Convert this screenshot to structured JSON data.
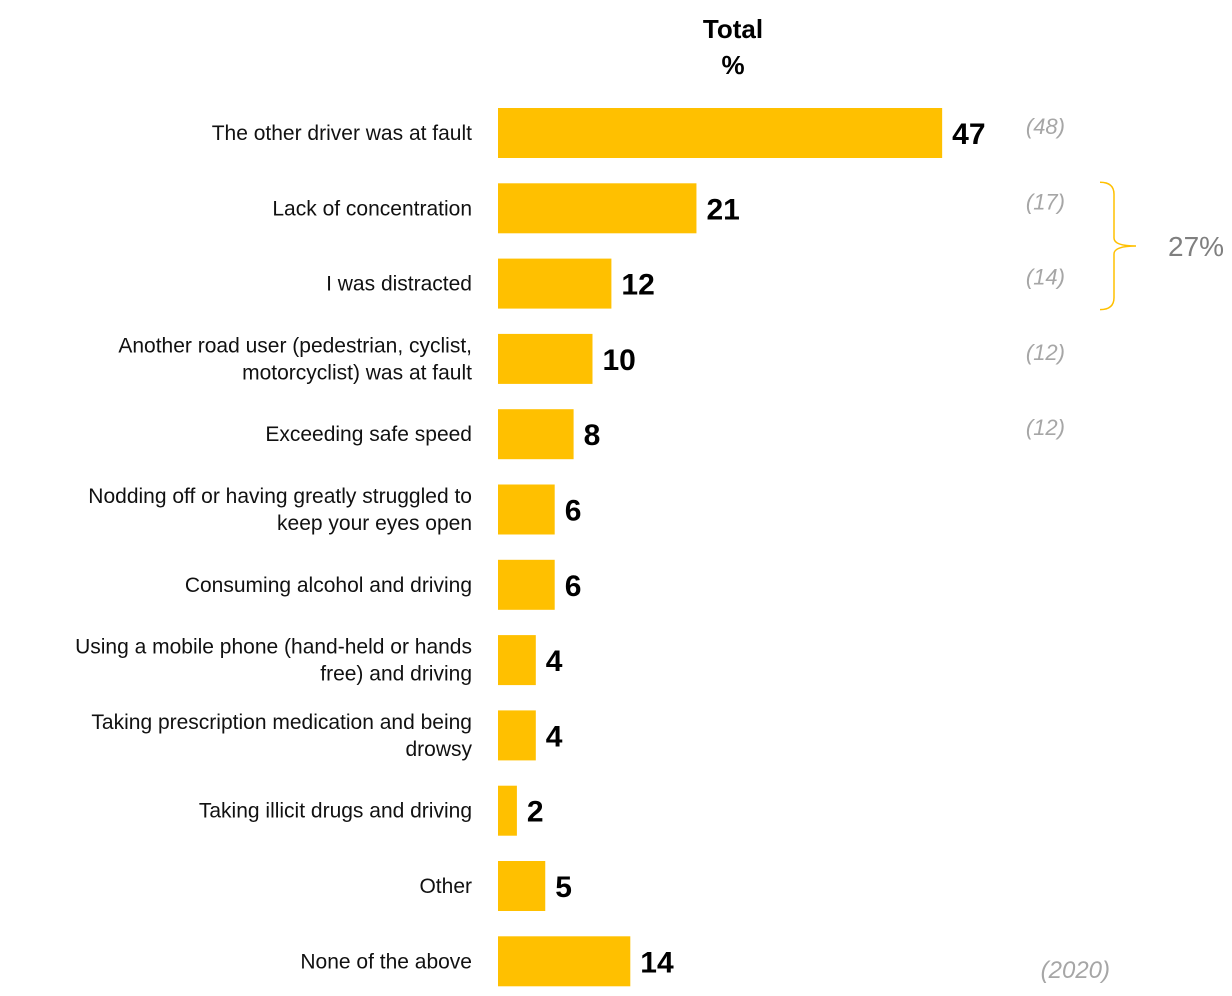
{
  "chart_data": {
    "type": "bar",
    "orientation": "horizontal",
    "column_header": [
      "Total",
      "%"
    ],
    "bar_color": "#FFC000",
    "categories": [
      [
        "The other driver was at fault"
      ],
      [
        "Lack of concentration"
      ],
      [
        "I was distracted"
      ],
      [
        "Another road user (pedestrian, cyclist,",
        "motorcyclist) was at fault"
      ],
      [
        "Exceeding safe speed"
      ],
      [
        "Nodding off or having greatly struggled to",
        "keep your eyes open"
      ],
      [
        "Consuming alcohol and driving"
      ],
      [
        "Using a mobile phone (hand-held or hands",
        "free) and driving"
      ],
      [
        "Taking prescription medication and being",
        "drowsy"
      ],
      [
        "Taking illicit drugs and driving"
      ],
      [
        "Other"
      ],
      [
        "None of the above"
      ]
    ],
    "values": [
      47,
      21,
      12,
      10,
      8,
      6,
      6,
      4,
      4,
      2,
      5,
      14
    ],
    "comparison": {
      "label": "(2020)",
      "values": [
        "(48)",
        "(17)",
        "(14)",
        "(12)",
        "(12)",
        null,
        null,
        null,
        null,
        null,
        null,
        null
      ]
    },
    "bracket": {
      "label": "27%",
      "rows": [
        1,
        2
      ],
      "color": "#FFC000"
    },
    "grid": false,
    "legend": "none"
  }
}
